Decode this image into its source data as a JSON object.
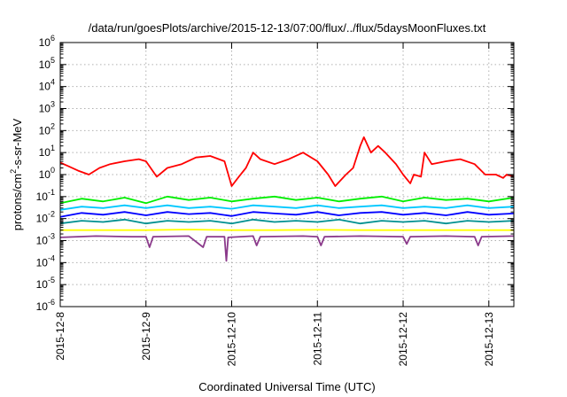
{
  "chart_data": {
    "type": "line",
    "title": "/data/run/goesPlots/archive/2015-12-13/07:00/flux/../flux/5daysMoonFluxes.txt",
    "xlabel": "Coordinated Universal Time (UTC)",
    "ylabel": "protons/cm²-s-sr-MeV",
    "ylabel_parts": {
      "base": "protons/cm",
      "sup": "2",
      "rest": "-s-sr-MeV"
    },
    "x_scale": "time",
    "y_scale": "log",
    "xlim": [
      "2015-12-08T00:00",
      "2015-12-13T07:00"
    ],
    "ylim": [
      1e-06,
      1000000.0
    ],
    "grid": true,
    "x_ticks": [
      "2015-12-8",
      "2015-12-9",
      "2015-12-10",
      "2015-12-11",
      "2015-12-12",
      "2015-12-13"
    ],
    "y_ticks": [
      {
        "base": "10",
        "exp": "-6"
      },
      {
        "base": "10",
        "exp": "-5"
      },
      {
        "base": "10",
        "exp": "-4"
      },
      {
        "base": "10",
        "exp": "-3"
      },
      {
        "base": "10",
        "exp": "-2"
      },
      {
        "base": "10",
        "exp": "-1"
      },
      {
        "base": "10",
        "exp": "0"
      },
      {
        "base": "10",
        "exp": "1"
      },
      {
        "base": "10",
        "exp": "2"
      },
      {
        "base": "10",
        "exp": "3"
      },
      {
        "base": "10",
        "exp": "4"
      },
      {
        "base": "10",
        "exp": "5"
      },
      {
        "base": "10",
        "exp": "6"
      }
    ],
    "series": [
      {
        "color": "#ff0000",
        "points": [
          [
            "2015-12-08T00:00",
            3.5
          ],
          [
            "2015-12-08T02:00",
            2.5
          ],
          [
            "2015-12-08T05:00",
            1.5
          ],
          [
            "2015-12-08T08:00",
            1.0
          ],
          [
            "2015-12-08T11:00",
            2.0
          ],
          [
            "2015-12-08T14:00",
            3.0
          ],
          [
            "2015-12-08T18:00",
            4.0
          ],
          [
            "2015-12-08T22:00",
            5.0
          ],
          [
            "2015-12-09T00:00",
            4.0
          ],
          [
            "2015-12-09T03:00",
            0.8
          ],
          [
            "2015-12-09T06:00",
            2.0
          ],
          [
            "2015-12-09T10:00",
            3.0
          ],
          [
            "2015-12-09T14:00",
            6.0
          ],
          [
            "2015-12-09T18:00",
            7.0
          ],
          [
            "2015-12-09T22:00",
            4.0
          ],
          [
            "2015-12-10T00:00",
            0.3
          ],
          [
            "2015-12-10T02:00",
            0.8
          ],
          [
            "2015-12-10T04:00",
            2.0
          ],
          [
            "2015-12-10T06:00",
            10.0
          ],
          [
            "2015-12-10T08:00",
            5.0
          ],
          [
            "2015-12-10T12:00",
            3.0
          ],
          [
            "2015-12-10T16:00",
            5.0
          ],
          [
            "2015-12-10T20:00",
            10.0
          ],
          [
            "2015-12-11T00:00",
            4.0
          ],
          [
            "2015-12-11T03:00",
            1.0
          ],
          [
            "2015-12-11T05:00",
            0.3
          ],
          [
            "2015-12-11T08:00",
            1.0
          ],
          [
            "2015-12-11T10:00",
            2.0
          ],
          [
            "2015-12-11T12:00",
            20.0
          ],
          [
            "2015-12-11T13:00",
            50.0
          ],
          [
            "2015-12-11T15:00",
            10.0
          ],
          [
            "2015-12-11T17:00",
            20.0
          ],
          [
            "2015-12-11T19:00",
            10.0
          ],
          [
            "2015-12-11T22:00",
            3.0
          ],
          [
            "2015-12-12T00:00",
            1.0
          ],
          [
            "2015-12-12T02:00",
            0.4
          ],
          [
            "2015-12-12T03:00",
            1.0
          ],
          [
            "2015-12-12T05:00",
            0.8
          ],
          [
            "2015-12-12T06:00",
            10.0
          ],
          [
            "2015-12-12T08:00",
            3.0
          ],
          [
            "2015-12-12T12:00",
            4.0
          ],
          [
            "2015-12-12T16:00",
            5.0
          ],
          [
            "2015-12-12T20:00",
            3.0
          ],
          [
            "2015-12-12T23:00",
            1.0
          ],
          [
            "2015-12-13T02:00",
            1.0
          ],
          [
            "2015-12-13T04:00",
            0.7
          ],
          [
            "2015-12-13T05:00",
            1.0
          ],
          [
            "2015-12-13T07:00",
            0.8
          ]
        ]
      },
      {
        "color": "#00ee00",
        "points": [
          [
            "2015-12-08T00:00",
            0.05
          ],
          [
            "2015-12-08T06:00",
            0.08
          ],
          [
            "2015-12-08T12:00",
            0.06
          ],
          [
            "2015-12-08T18:00",
            0.09
          ],
          [
            "2015-12-09T00:00",
            0.05
          ],
          [
            "2015-12-09T06:00",
            0.1
          ],
          [
            "2015-12-09T12:00",
            0.07
          ],
          [
            "2015-12-09T18:00",
            0.09
          ],
          [
            "2015-12-10T00:00",
            0.06
          ],
          [
            "2015-12-10T06:00",
            0.08
          ],
          [
            "2015-12-10T12:00",
            0.1
          ],
          [
            "2015-12-10T18:00",
            0.07
          ],
          [
            "2015-12-11T00:00",
            0.09
          ],
          [
            "2015-12-11T06:00",
            0.06
          ],
          [
            "2015-12-11T12:00",
            0.08
          ],
          [
            "2015-12-11T18:00",
            0.1
          ],
          [
            "2015-12-12T00:00",
            0.06
          ],
          [
            "2015-12-12T06:00",
            0.09
          ],
          [
            "2015-12-12T12:00",
            0.07
          ],
          [
            "2015-12-12T18:00",
            0.08
          ],
          [
            "2015-12-13T00:00",
            0.06
          ],
          [
            "2015-12-13T07:00",
            0.09
          ]
        ]
      },
      {
        "color": "#00c8ff",
        "points": [
          [
            "2015-12-08T00:00",
            0.025
          ],
          [
            "2015-12-08T06:00",
            0.035
          ],
          [
            "2015-12-08T12:00",
            0.03
          ],
          [
            "2015-12-08T18:00",
            0.04
          ],
          [
            "2015-12-09T00:00",
            0.03
          ],
          [
            "2015-12-09T06:00",
            0.04
          ],
          [
            "2015-12-09T12:00",
            0.03
          ],
          [
            "2015-12-09T18:00",
            0.035
          ],
          [
            "2015-12-10T00:00",
            0.028
          ],
          [
            "2015-12-10T06:00",
            0.04
          ],
          [
            "2015-12-10T12:00",
            0.035
          ],
          [
            "2015-12-10T18:00",
            0.03
          ],
          [
            "2015-12-11T00:00",
            0.04
          ],
          [
            "2015-12-11T06:00",
            0.03
          ],
          [
            "2015-12-11T12:00",
            0.035
          ],
          [
            "2015-12-11T18:00",
            0.04
          ],
          [
            "2015-12-12T00:00",
            0.03
          ],
          [
            "2015-12-12T06:00",
            0.035
          ],
          [
            "2015-12-12T12:00",
            0.03
          ],
          [
            "2015-12-12T18:00",
            0.04
          ],
          [
            "2015-12-13T00:00",
            0.03
          ],
          [
            "2015-12-13T07:00",
            0.035
          ]
        ]
      },
      {
        "color": "#0000ff",
        "points": [
          [
            "2015-12-08T00:00",
            0.012
          ],
          [
            "2015-12-08T06:00",
            0.018
          ],
          [
            "2015-12-08T12:00",
            0.015
          ],
          [
            "2015-12-08T18:00",
            0.02
          ],
          [
            "2015-12-09T00:00",
            0.014
          ],
          [
            "2015-12-09T06:00",
            0.02
          ],
          [
            "2015-12-09T12:00",
            0.016
          ],
          [
            "2015-12-09T18:00",
            0.018
          ],
          [
            "2015-12-10T00:00",
            0.013
          ],
          [
            "2015-12-10T06:00",
            0.02
          ],
          [
            "2015-12-10T12:00",
            0.017
          ],
          [
            "2015-12-10T18:00",
            0.015
          ],
          [
            "2015-12-11T00:00",
            0.02
          ],
          [
            "2015-12-11T06:00",
            0.014
          ],
          [
            "2015-12-11T12:00",
            0.018
          ],
          [
            "2015-12-11T18:00",
            0.02
          ],
          [
            "2015-12-12T00:00",
            0.015
          ],
          [
            "2015-12-12T06:00",
            0.018
          ],
          [
            "2015-12-12T12:00",
            0.014
          ],
          [
            "2015-12-12T18:00",
            0.02
          ],
          [
            "2015-12-13T00:00",
            0.015
          ],
          [
            "2015-12-13T07:00",
            0.017
          ]
        ]
      },
      {
        "color": "#009090",
        "points": [
          [
            "2015-12-08T00:00",
            0.006
          ],
          [
            "2015-12-08T06:00",
            0.008
          ],
          [
            "2015-12-08T12:00",
            0.007
          ],
          [
            "2015-12-08T18:00",
            0.009
          ],
          [
            "2015-12-09T00:00",
            0.006
          ],
          [
            "2015-12-09T06:00",
            0.008
          ],
          [
            "2015-12-09T12:00",
            0.007
          ],
          [
            "2015-12-09T18:00",
            0.008
          ],
          [
            "2015-12-10T00:00",
            0.006
          ],
          [
            "2015-12-10T06:00",
            0.009
          ],
          [
            "2015-12-10T12:00",
            0.007
          ],
          [
            "2015-12-10T18:00",
            0.008
          ],
          [
            "2015-12-11T00:00",
            0.007
          ],
          [
            "2015-12-11T06:00",
            0.009
          ],
          [
            "2015-12-11T12:00",
            0.006
          ],
          [
            "2015-12-11T18:00",
            0.008
          ],
          [
            "2015-12-12T00:00",
            0.007
          ],
          [
            "2015-12-12T06:00",
            0.008
          ],
          [
            "2015-12-12T12:00",
            0.006
          ],
          [
            "2015-12-12T18:00",
            0.008
          ],
          [
            "2015-12-13T00:00",
            0.007
          ],
          [
            "2015-12-13T07:00",
            0.008
          ]
        ]
      },
      {
        "color": "#ffff00",
        "points": [
          [
            "2015-12-08T00:00",
            0.003
          ],
          [
            "2015-12-08T12:00",
            0.003
          ],
          [
            "2015-12-09T00:00",
            0.003
          ],
          [
            "2015-12-09T12:00",
            0.0032
          ],
          [
            "2015-12-10T00:00",
            0.003
          ],
          [
            "2015-12-10T12:00",
            0.003
          ],
          [
            "2015-12-11T00:00",
            0.0031
          ],
          [
            "2015-12-11T12:00",
            0.003
          ],
          [
            "2015-12-12T00:00",
            0.003
          ],
          [
            "2015-12-12T12:00",
            0.003
          ],
          [
            "2015-12-13T00:00",
            0.003
          ],
          [
            "2015-12-13T07:00",
            0.003
          ]
        ]
      },
      {
        "color": "#8b3a8b",
        "points": [
          [
            "2015-12-08T00:00",
            0.0014
          ],
          [
            "2015-12-08T10:00",
            0.0016
          ],
          [
            "2015-12-08T20:00",
            0.0015
          ],
          [
            "2015-12-09T00:00",
            0.0015
          ],
          [
            "2015-12-09T01:00",
            0.0005
          ],
          [
            "2015-12-09T02:00",
            0.0015
          ],
          [
            "2015-12-09T12:00",
            0.0016
          ],
          [
            "2015-12-09T16:00",
            0.0005
          ],
          [
            "2015-12-09T17:00",
            0.0015
          ],
          [
            "2015-12-09T22:00",
            0.0015
          ],
          [
            "2015-12-09T22:30",
            0.00012
          ],
          [
            "2015-12-09T23:00",
            0.0014
          ],
          [
            "2015-12-10T06:00",
            0.0016
          ],
          [
            "2015-12-10T07:00",
            0.0006
          ],
          [
            "2015-12-10T08:00",
            0.0015
          ],
          [
            "2015-12-10T20:00",
            0.0016
          ],
          [
            "2015-12-11T00:00",
            0.0015
          ],
          [
            "2015-12-11T01:00",
            0.0006
          ],
          [
            "2015-12-11T02:00",
            0.0015
          ],
          [
            "2015-12-11T12:00",
            0.0016
          ],
          [
            "2015-12-12T00:00",
            0.0015
          ],
          [
            "2015-12-12T01:00",
            0.0007
          ],
          [
            "2015-12-12T02:00",
            0.0015
          ],
          [
            "2015-12-12T12:00",
            0.0016
          ],
          [
            "2015-12-12T20:00",
            0.0015
          ],
          [
            "2015-12-12T21:00",
            0.0006
          ],
          [
            "2015-12-12T22:00",
            0.0015
          ],
          [
            "2015-12-13T07:00",
            0.0016
          ]
        ]
      }
    ]
  }
}
